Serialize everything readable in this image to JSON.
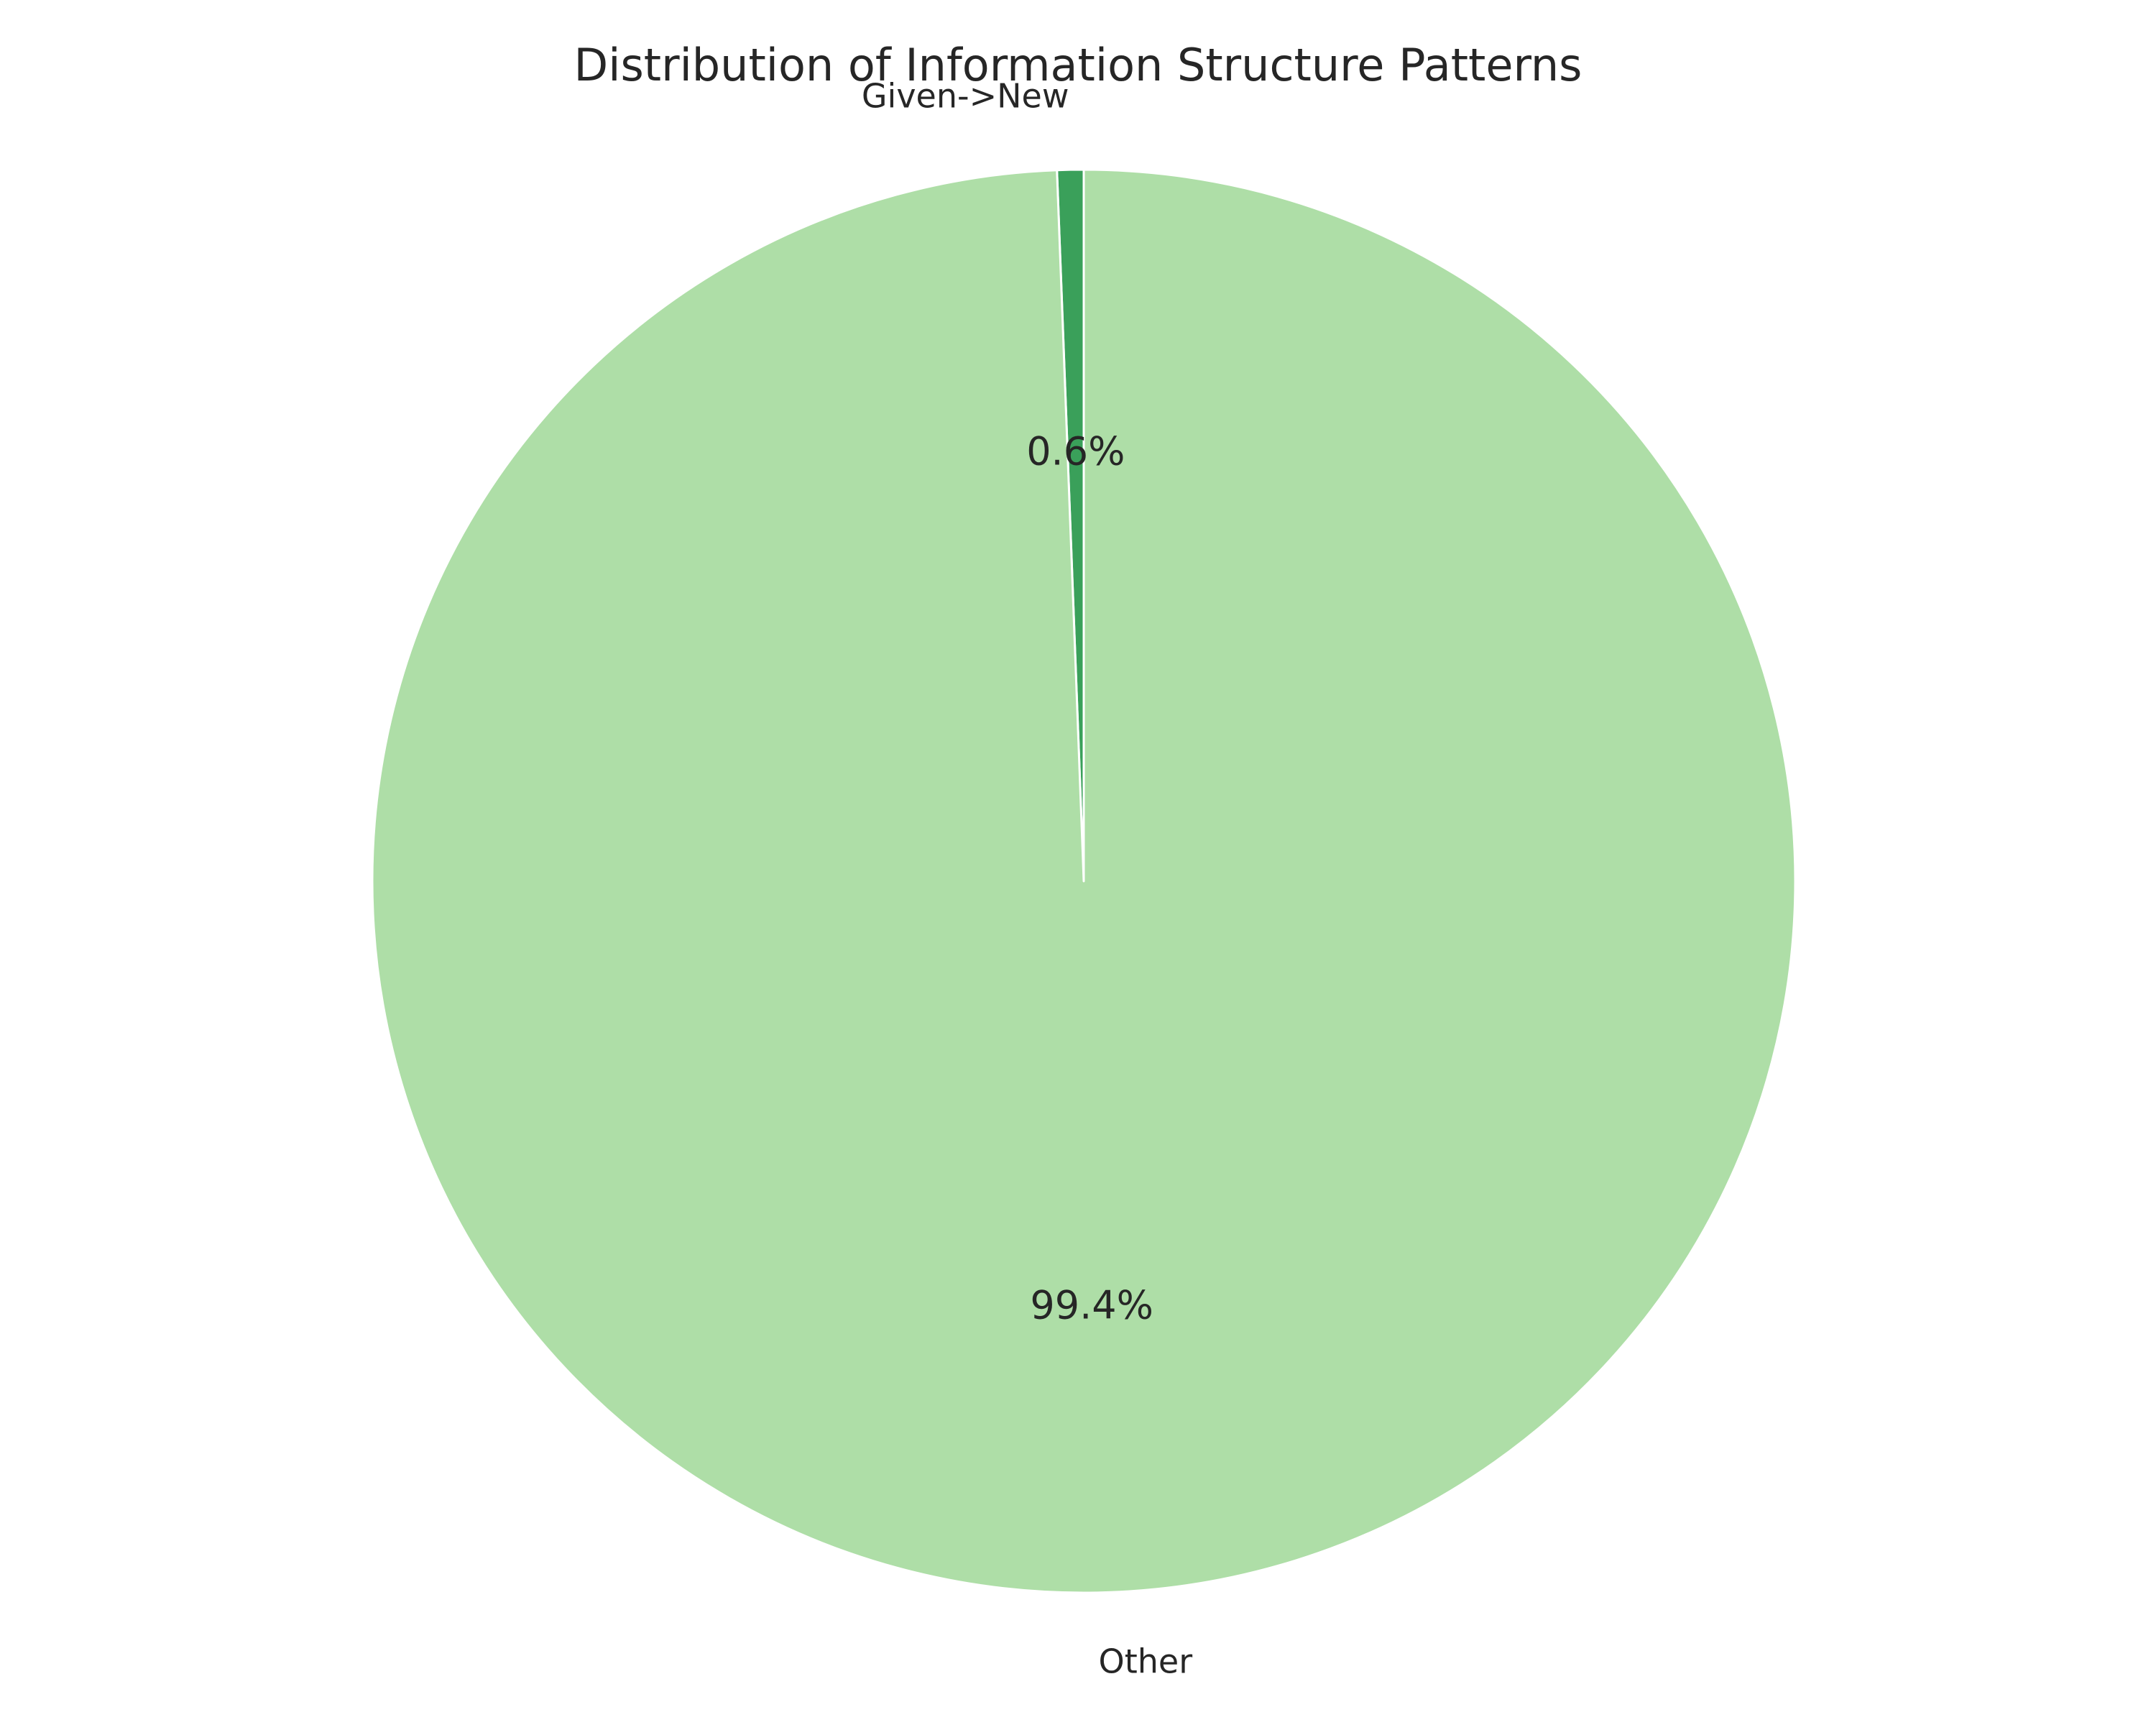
{
  "chart_data": {
    "type": "pie",
    "title": "Distribution of Information Structure Patterns",
    "start_angle_deg": 90,
    "direction": "counterclockwise",
    "slices": [
      {
        "label": "Given->New",
        "value": 0.6,
        "pct_label": "0.6%",
        "color": "#3aa05a"
      },
      {
        "label": "Other",
        "value": 99.4,
        "pct_label": "99.4%",
        "color": "#aedea7"
      }
    ],
    "edge_color": "#ffffff"
  }
}
